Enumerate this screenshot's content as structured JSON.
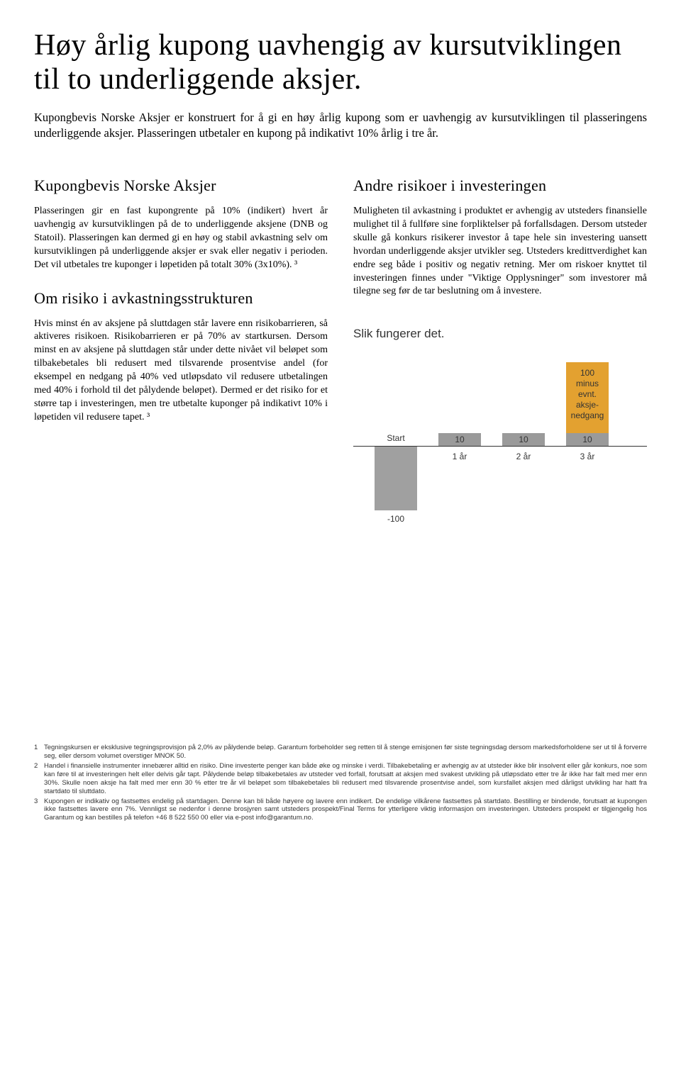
{
  "title": "Høy årlig kupong uavhengig av kursutviklingen til to underliggende aksjer.",
  "intro": "Kupongbevis Norske Aksjer er konstruert for å gi en høy årlig kupong som er uavhengig av kursutviklingen til plasseringens underliggende aksjer. Plasseringen utbetaler en kupong på indikativt 10% årlig i tre år.",
  "left": {
    "h1": "Kupongbevis Norske Aksjer",
    "p1": "Plasseringen gir en fast kupongrente på 10% (indikert) hvert år uavhengig av kursutviklingen på de to underliggende aksjene (DNB og Statoil). Plasseringen kan dermed gi en høy og stabil avkastning selv om kursutviklingen på underliggende aksjer er svak eller negativ i perioden. Det vil utbetales tre kuponger i løpetiden på totalt 30% (3x10%). ³",
    "h2": "Om risiko i avkastningsstrukturen",
    "p2": "Hvis minst én av aksjene på sluttdagen står lavere enn risikobarrieren, så aktiveres risikoen. Risikobarrieren er på 70% av startkursen. Dersom minst en av aksjene på sluttdagen står under dette nivået vil beløpet som tilbakebetales bli redusert med tilsvarende prosentvise andel (for eksempel en nedgang på 40% ved utløpsdato vil redusere utbetalingen med 40% i forhold til det pålydende beløpet). Dermed er det risiko for et større tap i investeringen, men tre utbetalte kuponger på indikativt 10% i løpetiden vil redusere tapet. ³"
  },
  "right": {
    "h1": "Andre  risikoer i investeringen",
    "p1": "Muligheten til avkastning i produktet er avhengig av utsteders finansielle mulighet til å fullføre sine forpliktelser på forfallsdagen. Dersom utsteder skulle gå konkurs risikerer investor å tape hele sin investering uansett hvordan underliggende aksjer utvikler seg. Utsteders kredittverdighet kan endre seg både i positiv og negativ retning. Mer om riskoer knyttet til investeringen finnes under \"Viktige Opplysninger\"  som investorer må tilegne seg før de tar beslutning om å investere."
  },
  "chart": {
    "title": "Slik fungerer det.",
    "start_label": "Start",
    "callout": "100\nminus\nevnt.\naksje-\nnedgang",
    "bars": [
      {
        "label_below": "1 år",
        "value_label": "10",
        "height": 18
      },
      {
        "label_below": "2 år",
        "value_label": "10",
        "height": 18
      },
      {
        "label_below": "3 år",
        "value_label": "10",
        "height": 18
      }
    ],
    "start_bar_height": 90,
    "start_bar_value": "-100",
    "final_bar_height": 100,
    "colors": {
      "bar_light": "#9a9a9a",
      "bar_final": "#e3a130",
      "bar_start": "#a0a0a0",
      "callout_bg": "#f4c97a",
      "axis": "#333333",
      "text": "#333333"
    }
  },
  "footnotes": [
    {
      "n": "1",
      "text": "Tegningskursen er eksklusive tegningsprovisjon på 2,0% av pålydende beløp. Garantum forbeholder seg retten til å stenge emisjonen før siste tegningsdag dersom markedsforholdene ser ut til å forverre seg, eller dersom volumet overstiger MNOK 50."
    },
    {
      "n": "2",
      "text": "Handel i finansielle instrumenter innebærer alltid en risiko. Dine investerte penger kan både øke og minske i verdi. Tilbakebetaling er avhengig av at utsteder ikke blir insolvent eller går konkurs, noe som kan føre til at investeringen helt eller delvis går tapt. Pålydende beløp tilbakebetales av utsteder ved forfall, forutsatt at aksjen med svakest utvikling på utløpsdato etter tre år ikke har falt med mer enn 30%. Skulle noen aksje ha falt med mer enn 30 % etter tre år vil beløpet som tilbakebetales bli redusert med tilsvarende prosentvise andel, som kursfallet aksjen med dårligst utvikling har hatt fra startdato til sluttdato."
    },
    {
      "n": "3",
      "text": "Kupongen er indikativ og fastsettes endelig på startdagen. Denne kan bli både høyere og lavere enn indikert. De endelige vilkårene fastsettes på startdato. Bestilling er bindende, forutsatt at kupongen ikke fastsettes lavere enn 7%. Vennligst se nedenfor i denne brosjyren samt utsteders prospekt/Final Terms for ytterligere viktig informasjon om investeringen. Utsteders prospekt er tilgjengelig hos Garantum og kan bestilles på telefon +46 8 522 550 00 eller via e-post info@garantum.no."
    }
  ]
}
